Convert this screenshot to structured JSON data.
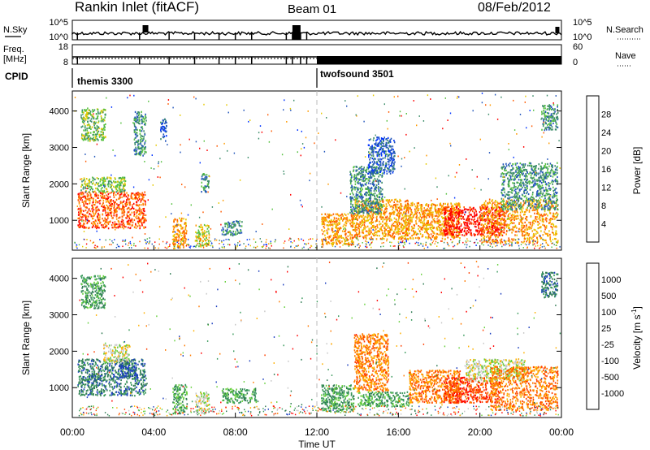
{
  "header": {
    "title": "Rankin Inlet (fitACF)",
    "beam": "Beam 01",
    "date": "08/Feb/2012"
  },
  "noise_panel": {
    "left_label": "N.Sky",
    "left_ticks": [
      "10^5",
      "10^0"
    ],
    "right_ticks": [
      "10^5",
      "10^0"
    ],
    "right_label": "N.Search"
  },
  "freq_panel": {
    "left_label_1": "Freq.",
    "left_label_2": "[MHz]",
    "left_ticks": [
      "18",
      "8"
    ],
    "right_ticks": [
      "60",
      "0"
    ],
    "right_label": "Nave"
  },
  "cpid": {
    "label": "CPID",
    "modes": [
      {
        "name": "themis 3300",
        "start_hour": 0,
        "end_hour": 12
      },
      {
        "name": "twofsound 3501",
        "start_hour": 12,
        "end_hour": 24
      }
    ]
  },
  "chart_data": [
    {
      "type": "heatmap",
      "panel": "power",
      "xlabel": "",
      "ylabel": "Slant Range [km]",
      "x_range_hours": [
        0,
        24
      ],
      "ylim": [
        180,
        4550
      ],
      "yticks": [
        1000,
        2000,
        3000,
        4000
      ],
      "colorbar": {
        "label": "Power [dB]",
        "ticks": [
          "4",
          "8",
          "12",
          "16",
          "20",
          "24",
          "28"
        ],
        "colors": [
          "#0033ff",
          "#2255bb",
          "#3d8d6a",
          "#56c040",
          "#e6c900",
          "#ff9a00",
          "#ff5a00",
          "#ff0000"
        ]
      },
      "regions": [
        {
          "x0": 0.25,
          "x1": 3.6,
          "y0": 800,
          "y1": 1800,
          "level": 6
        },
        {
          "x0": 0.4,
          "x1": 2.6,
          "y0": 1800,
          "y1": 2200,
          "level": 3
        },
        {
          "x0": 0.4,
          "x1": 1.6,
          "y0": 3200,
          "y1": 4100,
          "level": 3
        },
        {
          "x0": 3.0,
          "x1": 3.6,
          "y0": 2800,
          "y1": 4000,
          "level": 2
        },
        {
          "x0": 4.3,
          "x1": 4.6,
          "y0": 3200,
          "y1": 3800,
          "level": 1
        },
        {
          "x0": 4.9,
          "x1": 5.6,
          "y0": 250,
          "y1": 1100,
          "level": 5
        },
        {
          "x0": 6.0,
          "x1": 6.7,
          "y0": 300,
          "y1": 900,
          "level": 4
        },
        {
          "x0": 6.3,
          "x1": 6.7,
          "y0": 1800,
          "y1": 2300,
          "level": 2
        },
        {
          "x0": 7.3,
          "x1": 8.3,
          "y0": 600,
          "y1": 1000,
          "level": 2
        },
        {
          "x0": 12.2,
          "x1": 13.8,
          "y0": 350,
          "y1": 1200,
          "level": 5
        },
        {
          "x0": 13.8,
          "x1": 16.5,
          "y0": 500,
          "y1": 1600,
          "level": 5
        },
        {
          "x0": 13.6,
          "x1": 15.2,
          "y0": 1200,
          "y1": 2500,
          "level": 2
        },
        {
          "x0": 14.5,
          "x1": 15.8,
          "y0": 2300,
          "y1": 3300,
          "level": 1
        },
        {
          "x0": 16.3,
          "x1": 19.0,
          "y0": 500,
          "y1": 1500,
          "level": 5
        },
        {
          "x0": 18.2,
          "x1": 21.2,
          "y0": 600,
          "y1": 1400,
          "level": 7
        },
        {
          "x0": 20.0,
          "x1": 23.8,
          "y0": 400,
          "y1": 1600,
          "level": 5
        },
        {
          "x0": 21.0,
          "x1": 23.8,
          "y0": 1300,
          "y1": 2600,
          "level": 2
        },
        {
          "x0": 23.0,
          "x1": 23.8,
          "y0": 3500,
          "y1": 4200,
          "level": 2
        }
      ]
    },
    {
      "type": "heatmap",
      "panel": "velocity",
      "xlabel": "Time UT",
      "ylabel": "Slant Range [km]",
      "x_range_hours": [
        0,
        24
      ],
      "xticks": [
        "00:00",
        "04:00",
        "08:00",
        "12:00",
        "16:00",
        "20:00",
        "00:00"
      ],
      "ylim": [
        180,
        4550
      ],
      "yticks": [
        1000,
        2000,
        3000,
        4000
      ],
      "colorbar": {
        "label": "Velocity [m s^-1]",
        "ticks": [
          "1000",
          "500",
          "100",
          "25",
          "-25",
          "-100",
          "-500",
          "-1000"
        ],
        "colors": [
          "#1c3fbf",
          "#2e7a52",
          "#3a9a5c",
          "#66d03c",
          "#c8c8c8",
          "#ffb000",
          "#ff7a00",
          "#ff4000",
          "#ff0000"
        ]
      },
      "regions": [
        {
          "x0": 0.25,
          "x1": 3.6,
          "y0": 800,
          "y1": 1800,
          "level": 1
        },
        {
          "x0": 1.5,
          "x1": 2.8,
          "y0": 1700,
          "y1": 2200,
          "level": 4
        },
        {
          "x0": 0.4,
          "x1": 1.6,
          "y0": 3200,
          "y1": 4100,
          "level": 2
        },
        {
          "x0": 2.3,
          "x1": 3.2,
          "y0": 1300,
          "y1": 1700,
          "level": 0
        },
        {
          "x0": 4.9,
          "x1": 5.6,
          "y0": 300,
          "y1": 1100,
          "level": 2
        },
        {
          "x0": 6.0,
          "x1": 6.7,
          "y0": 300,
          "y1": 900,
          "level": 4
        },
        {
          "x0": 7.3,
          "x1": 9.0,
          "y0": 600,
          "y1": 1000,
          "level": 2
        },
        {
          "x0": 12.2,
          "x1": 13.8,
          "y0": 350,
          "y1": 1100,
          "level": 2
        },
        {
          "x0": 13.8,
          "x1": 15.5,
          "y0": 900,
          "y1": 2500,
          "level": 6
        },
        {
          "x0": 14.0,
          "x1": 16.5,
          "y0": 500,
          "y1": 900,
          "level": 2
        },
        {
          "x0": 16.5,
          "x1": 19.0,
          "y0": 600,
          "y1": 1500,
          "level": 6
        },
        {
          "x0": 18.2,
          "x1": 21.0,
          "y0": 600,
          "y1": 1300,
          "level": 7
        },
        {
          "x0": 19.3,
          "x1": 22.2,
          "y0": 1200,
          "y1": 1800,
          "level": 4
        },
        {
          "x0": 20.5,
          "x1": 23.8,
          "y0": 400,
          "y1": 1600,
          "level": 6
        },
        {
          "x0": 23.0,
          "x1": 23.8,
          "y0": 3500,
          "y1": 4200,
          "level": 1
        }
      ]
    }
  ]
}
